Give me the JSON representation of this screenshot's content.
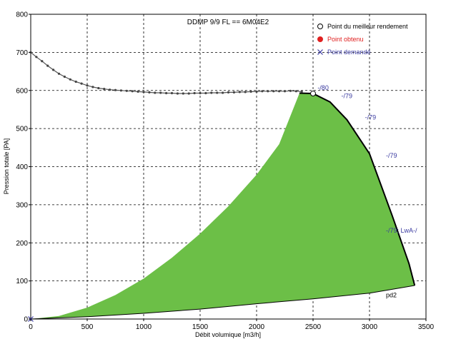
{
  "chart_data": {
    "type": "area",
    "title": "DDMP 9/9 FL == 6M04E2",
    "xlabel": "Débit volumique [m3/h]",
    "ylabel": "Pression totale [PA]",
    "xlim": [
      0,
      3500
    ],
    "ylim": [
      0,
      800
    ],
    "x_ticks": [
      0,
      500,
      1000,
      1500,
      2000,
      2500,
      3000,
      3500
    ],
    "y_ticks": [
      0,
      100,
      200,
      300,
      400,
      500,
      600,
      700,
      800
    ],
    "x_tick_labels": [
      "0",
      "500",
      "1000",
      "1500",
      "2000",
      "2500",
      "3000",
      "3500"
    ],
    "y_tick_labels": [
      "0",
      "100",
      "200",
      "300",
      "400",
      "500",
      "600",
      "700",
      "800"
    ],
    "grid": true,
    "legend_position": "top-right",
    "legend": [
      {
        "label": "Point du meilleur rendement",
        "marker": "open-circle",
        "color": "#000000"
      },
      {
        "label": "Point obtenu",
        "marker": "filled-circle",
        "color": "#e02020"
      },
      {
        "label": "Point demandé",
        "marker": "x",
        "color": "#3a3aa0"
      }
    ],
    "fan_curve": {
      "x": [
        0,
        50,
        100,
        150,
        200,
        250,
        300,
        350,
        400,
        450,
        500,
        550,
        600,
        650,
        700,
        750,
        800,
        850,
        900,
        950,
        1000,
        1050,
        1100,
        1150,
        1200,
        1250,
        1300,
        1350,
        1400,
        1450,
        1500,
        1550,
        1600,
        1650,
        1700,
        1750,
        1800,
        1850,
        1900,
        1950,
        2000,
        2050,
        2100,
        2150,
        2200,
        2250,
        2300,
        2350,
        2400
      ],
      "y": [
        700,
        688,
        677,
        665,
        654,
        644,
        636,
        629,
        623,
        618,
        613,
        609,
        606,
        604,
        602,
        601,
        600,
        599,
        598,
        597,
        596,
        595,
        594,
        594,
        593,
        593,
        592,
        592,
        592,
        593,
        593,
        593,
        594,
        594,
        594,
        595,
        595,
        596,
        596,
        597,
        597,
        598,
        598,
        598,
        598,
        598,
        599,
        598,
        597
      ]
    },
    "area_upper": {
      "x": [
        0,
        250,
        500,
        750,
        1000,
        1250,
        1500,
        1750,
        2000,
        2200,
        2380,
        2500,
        2650,
        2800,
        3000,
        3200,
        3350,
        3400
      ],
      "y": [
        0,
        8,
        30,
        63,
        106,
        161,
        224,
        296,
        379,
        459,
        593,
        592,
        570,
        523,
        434,
        272,
        145,
        88
      ]
    },
    "area_lower": {
      "x": [
        0,
        500,
        1000,
        1500,
        2000,
        2500,
        3000,
        3400
      ],
      "y": [
        0,
        6,
        15,
        26,
        40,
        53,
        68,
        88
      ]
    },
    "best_efficiency_point": {
      "x": 2500,
      "y": 592
    },
    "demanded_point": {
      "x": 0,
      "y": 0
    },
    "annotations": [
      {
        "text": "-/80",
        "x": 2540,
        "y": 601,
        "color": "#3a3aa0"
      },
      {
        "text": "-/79",
        "x": 2750,
        "y": 580,
        "color": "#3a3aa0"
      },
      {
        "text": "-/79",
        "x": 2960,
        "y": 524,
        "color": "#3a3aa0"
      },
      {
        "text": "-/79",
        "x": 3160,
        "y": 423,
        "color": "#3a3aa0"
      },
      {
        "text": "-/79; LwA-/",
        "x": 3390,
        "y": 227,
        "color": "#3a3aa0"
      },
      {
        "text": "pd2",
        "x": 3340,
        "y": 57,
        "color": "#000000"
      }
    ],
    "colors": {
      "area_fill": "#6cbf47",
      "curve": "#000000",
      "annotation": "#3a3aa0",
      "grid": "#000000",
      "plot_background": "#ffffff"
    }
  }
}
